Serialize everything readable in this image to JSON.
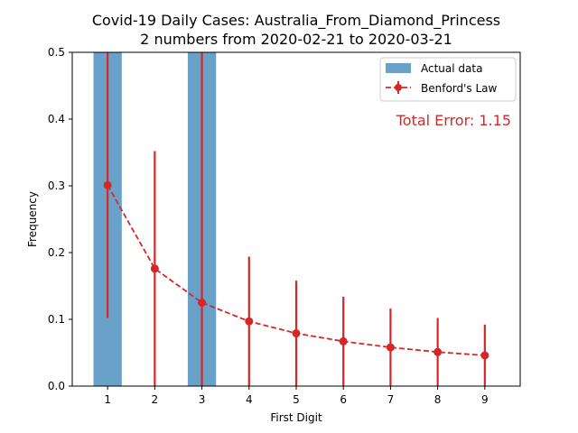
{
  "chart_data": {
    "type": "bar",
    "title_line1": "Covid-19 Daily Cases: Australia_From_Diamond_Princess",
    "title_line2": "2 numbers from 2020-02-21 to 2020-03-21",
    "xlabel": "First Digit",
    "ylabel": "Frequency",
    "categories": [
      "1",
      "2",
      "3",
      "4",
      "5",
      "6",
      "7",
      "8",
      "9"
    ],
    "x": [
      1,
      2,
      3,
      4,
      5,
      6,
      7,
      8,
      9
    ],
    "ylim": [
      0,
      0.5
    ],
    "yticks": [
      "0.0",
      "0.1",
      "0.2",
      "0.3",
      "0.4",
      "0.5"
    ],
    "series": [
      {
        "name": "Actual data",
        "type": "bar",
        "color": "#6aa1c8",
        "values": [
          0.5,
          0,
          0.5,
          0,
          0,
          0,
          0,
          0,
          0
        ]
      },
      {
        "name": "Benford's Law",
        "type": "line-errorbar",
        "color": "#d62728",
        "values": [
          0.301,
          0.176,
          0.125,
          0.097,
          0.079,
          0.067,
          0.058,
          0.051,
          0.046
        ]
      }
    ],
    "annotation": "Total Error: 1.15",
    "annotation_color": "#d62728",
    "legend_position": "top-right",
    "grid": false
  }
}
